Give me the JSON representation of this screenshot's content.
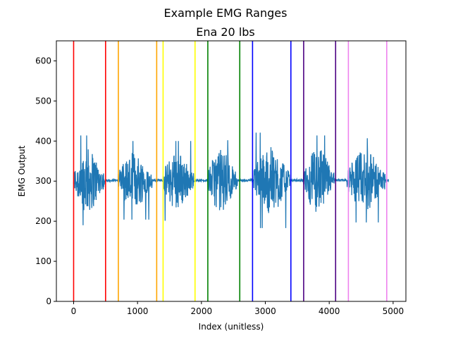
{
  "chart_data": {
    "type": "line",
    "suptitle": "Example EMG Ranges",
    "title": "Ena 20 lbs",
    "xlabel": "Index (unitless)",
    "ylabel": "EMG Output",
    "xlim": [
      -270,
      5200
    ],
    "ylim": [
      0,
      650
    ],
    "xticks": [
      0,
      1000,
      2000,
      3000,
      4000,
      5000
    ],
    "yticks": [
      0,
      100,
      200,
      300,
      400,
      500,
      600
    ],
    "grid": false,
    "series_color": "#1f77b4",
    "baseline": 302,
    "signal_extent": [
      0,
      4930
    ],
    "bursts": [
      {
        "start": 0,
        "end": 480,
        "amp": 80,
        "min": 186,
        "max": 417
      },
      {
        "start": 700,
        "end": 1230,
        "amp": 70,
        "min": 178,
        "max": 400
      },
      {
        "start": 1400,
        "end": 1880,
        "amp": 72,
        "min": 147,
        "max": 400
      },
      {
        "start": 2100,
        "end": 2560,
        "amp": 78,
        "min": 165,
        "max": 402
      },
      {
        "start": 2820,
        "end": 3380,
        "amp": 85,
        "min": 165,
        "max": 432
      },
      {
        "start": 3600,
        "end": 4080,
        "amp": 80,
        "min": 170,
        "max": 455
      },
      {
        "start": 4280,
        "end": 4880,
        "amp": 75,
        "min": 193,
        "max": 415
      }
    ],
    "range_markers": [
      {
        "x": 0,
        "color": "#ff0000"
      },
      {
        "x": 500,
        "color": "#ff0000"
      },
      {
        "x": 700,
        "color": "#ffa500"
      },
      {
        "x": 1300,
        "color": "#ffa500"
      },
      {
        "x": 1400,
        "color": "#ffff00"
      },
      {
        "x": 1900,
        "color": "#ffff00"
      },
      {
        "x": 2100,
        "color": "#008000"
      },
      {
        "x": 2600,
        "color": "#008000"
      },
      {
        "x": 2800,
        "color": "#0000ff"
      },
      {
        "x": 3400,
        "color": "#0000ff"
      },
      {
        "x": 3600,
        "color": "#4b0082"
      },
      {
        "x": 4100,
        "color": "#4b0082"
      },
      {
        "x": 4300,
        "color": "#ee82ee"
      },
      {
        "x": 4900,
        "color": "#ee82ee"
      }
    ]
  }
}
